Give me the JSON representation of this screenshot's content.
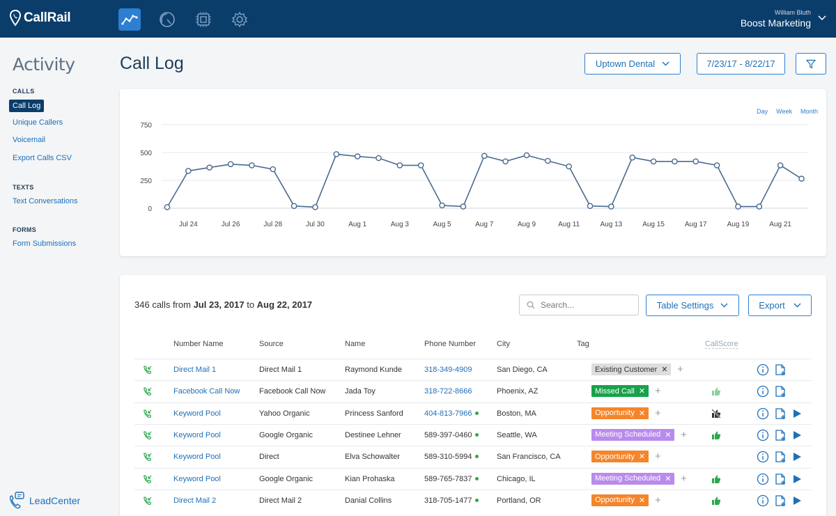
{
  "app": {
    "brand": "CallRail"
  },
  "user": {
    "name": "William Bluth",
    "org": "Boost Marketing"
  },
  "nav_icons": [
    "reports-chart-icon",
    "dashboard-gauge-icon",
    "integrations-chip-icon",
    "settings-gear-icon"
  ],
  "sidebar": {
    "title": "Activity",
    "sections": [
      {
        "heading": "CALLS",
        "items": [
          "Call Log",
          "Unique Callers",
          "Voicemail",
          "Export Calls CSV"
        ]
      },
      {
        "heading": "TEXTS",
        "items": [
          "Text Conversations"
        ]
      },
      {
        "heading": "FORMS",
        "items": [
          "Form Submissions"
        ]
      }
    ],
    "selected": "Call Log",
    "footer_brand": "LeadCenter"
  },
  "header": {
    "title": "Call Log",
    "company_filter": "Uptown Dental",
    "date_range": "7/23/17 - 8/22/17"
  },
  "chart_data": {
    "type": "line",
    "granularity_options": [
      "Day",
      "Week",
      "Month"
    ],
    "y_ticks": [
      0,
      250,
      500,
      750
    ],
    "ylim": [
      0,
      750
    ],
    "x_tick_labels": [
      "Jul 24",
      "Jul 26",
      "Jul 28",
      "Jul 30",
      "Aug 1",
      "Aug 3",
      "Aug 5",
      "Aug 7",
      "Aug 9",
      "Aug 11",
      "Aug 13",
      "Aug 15",
      "Aug 17",
      "Aug 19",
      "Aug 21"
    ],
    "x": [
      "Jul 23",
      "Jul 24",
      "Jul 25",
      "Jul 26",
      "Jul 27",
      "Jul 28",
      "Jul 29",
      "Jul 30",
      "Jul 31",
      "Aug 1",
      "Aug 2",
      "Aug 3",
      "Aug 4",
      "Aug 5",
      "Aug 6",
      "Aug 7",
      "Aug 8",
      "Aug 9",
      "Aug 10",
      "Aug 11",
      "Aug 12",
      "Aug 13",
      "Aug 14",
      "Aug 15",
      "Aug 16",
      "Aug 17",
      "Aug 18",
      "Aug 19",
      "Aug 20",
      "Aug 21",
      "Aug 22"
    ],
    "values": [
      10,
      335,
      365,
      395,
      385,
      350,
      20,
      10,
      485,
      465,
      450,
      385,
      385,
      25,
      15,
      470,
      420,
      475,
      425,
      375,
      20,
      15,
      455,
      420,
      420,
      420,
      385,
      15,
      15,
      385,
      265
    ],
    "grid": true,
    "color": "#4a6a8f"
  },
  "table": {
    "total_calls": "346",
    "summary_text": "calls from",
    "start_date": "Jul 23, 2017",
    "to_text": "to",
    "end_date": "Aug 22, 2017",
    "search_placeholder": "Search...",
    "settings_label": "Table Settings",
    "export_label": "Export",
    "columns": [
      "Number Name",
      "Source",
      "Name",
      "Phone Number",
      "City",
      "Tag",
      "CallScore"
    ],
    "rows": [
      {
        "number_name": "Direct Mail 1",
        "source": "Direct Mail 1",
        "name": "Raymond Kunde",
        "phone": "318-349-4909",
        "phone_linked": true,
        "dot": false,
        "city": "San Diego, CA",
        "tag": "Existing Customer",
        "tag_color": "#dddddd",
        "tag_text_color": "#333333",
        "score": "none",
        "play": false
      },
      {
        "number_name": "Facebook Call Now",
        "source": "Facebook Call Now",
        "name": "Jada Toy",
        "phone": "318-722-8666",
        "phone_linked": true,
        "dot": false,
        "city": "Phoenix, AZ",
        "tag": "Missed Call",
        "tag_color": "#17a24a",
        "tag_text_color": "#ffffff",
        "score": "thumbs-up-faded",
        "play": false
      },
      {
        "number_name": "Keyword Pool",
        "source": "Yahoo Organic",
        "name": "Princess Sanford",
        "phone": "404-813-7966",
        "phone_linked": true,
        "dot": true,
        "city": "Boston, MA",
        "tag": "Opportunity",
        "tag_color": "#f4852a",
        "tag_text_color": "#ffffff",
        "score": "not-scored",
        "play": true
      },
      {
        "number_name": "Keyword Pool",
        "source": "Google Organic",
        "name": "Destinee Lehner",
        "phone": "589-397-0460",
        "phone_linked": false,
        "dot": true,
        "city": "Seattle, WA",
        "tag": "Meeting Scheduled",
        "tag_color": "#b98bec",
        "tag_text_color": "#ffffff",
        "score": "thumbs-up",
        "play": true
      },
      {
        "number_name": "Keyword Pool",
        "source": "Direct",
        "name": "Elva Schowalter",
        "phone": "589-310-5994",
        "phone_linked": false,
        "dot": true,
        "city": "San Francisco, CA",
        "tag": "Opportunity",
        "tag_color": "#f4852a",
        "tag_text_color": "#ffffff",
        "score": "none",
        "play": true
      },
      {
        "number_name": "Keyword Pool",
        "source": "Google Organic",
        "name": "Kian Prohaska",
        "phone": "589-765-7837",
        "phone_linked": false,
        "dot": true,
        "city": "Chicago, IL",
        "tag": "Meeting Scheduled",
        "tag_color": "#b98bec",
        "tag_text_color": "#ffffff",
        "score": "thumbs-up",
        "play": true
      },
      {
        "number_name": "Direct Mail 2",
        "source": "Direct Mail 2",
        "name": "Danial Collins",
        "phone": "318-705-1477",
        "phone_linked": false,
        "dot": true,
        "city": "Portland, OR",
        "tag": "Opportunity",
        "tag_color": "#f4852a",
        "tag_text_color": "#ffffff",
        "score": "thumbs-up",
        "play": true
      }
    ]
  },
  "colors": {
    "topbar": "#0b3d6b",
    "accent": "#2c7fd1",
    "link": "#1e6fb8",
    "positive": "#2ea84e"
  }
}
